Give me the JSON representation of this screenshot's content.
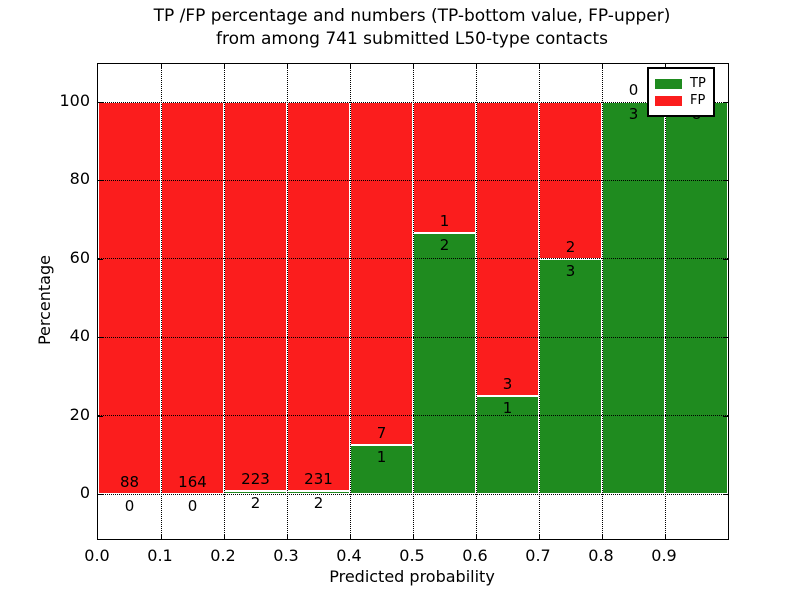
{
  "title": {
    "line1": "TP /FP percentage and numbers (TP-bottom value, FP-upper)",
    "line2": "from among 741 submitted L50-type contacts"
  },
  "chart_data": {
    "type": "bar",
    "subtype": "stacked-percentage-histogram",
    "title": "TP /FP percentage and numbers (TP-bottom value, FP-upper)\nfrom among 741 submitted L50-type contacts",
    "xlabel": "Predicted probability",
    "ylabel": "Percentage",
    "total_contacts": 741,
    "xlim": [
      0.0,
      1.0
    ],
    "ylim": [
      0,
      100
    ],
    "x_tick_labels": [
      "0.0",
      "0.1",
      "0.2",
      "0.3",
      "0.4",
      "0.5",
      "0.6",
      "0.7",
      "0.8",
      "0.9"
    ],
    "y_tick_labels": [
      "0",
      "20",
      "40",
      "60",
      "80",
      "100"
    ],
    "y_tick_values": [
      0,
      20,
      40,
      60,
      80,
      100
    ],
    "grid": "dotted-black-both-axes-drawn-over-bars",
    "legend": {
      "position": "upper-right",
      "entries": [
        {
          "label": "TP",
          "color": "#1f8b1f"
        },
        {
          "label": "FP",
          "color": "#fb1d1d"
        }
      ]
    },
    "bars": [
      {
        "bin": "0.0-0.1",
        "tp": 0,
        "fp": 88,
        "tp_pct": 0,
        "fp_pct": 100,
        "tp_label": "0",
        "fp_label": "88"
      },
      {
        "bin": "0.1-0.2",
        "tp": 0,
        "fp": 164,
        "tp_pct": 0,
        "fp_pct": 100,
        "tp_label": "0",
        "fp_label": "164"
      },
      {
        "bin": "0.2-0.3",
        "tp": 2,
        "fp": 223,
        "tp_pct": 0.89,
        "fp_pct": 99.11,
        "tp_label": "2",
        "fp_label": "223"
      },
      {
        "bin": "0.3-0.4",
        "tp": 2,
        "fp": 231,
        "tp_pct": 0.86,
        "fp_pct": 99.14,
        "tp_label": "2",
        "fp_label": "231"
      },
      {
        "bin": "0.4-0.5",
        "tp": 1,
        "fp": 7,
        "tp_pct": 12.5,
        "fp_pct": 87.5,
        "tp_label": "1",
        "fp_label": "7"
      },
      {
        "bin": "0.5-0.6",
        "tp": 2,
        "fp": 1,
        "tp_pct": 66.67,
        "fp_pct": 33.33,
        "tp_label": "2",
        "fp_label": "1"
      },
      {
        "bin": "0.6-0.7",
        "tp": 1,
        "fp": 3,
        "tp_pct": 25,
        "fp_pct": 75,
        "tp_label": "1",
        "fp_label": "3"
      },
      {
        "bin": "0.7-0.8",
        "tp": 3,
        "fp": 2,
        "tp_pct": 60,
        "fp_pct": 40,
        "tp_label": "3",
        "fp_label": "2"
      },
      {
        "bin": "0.8-0.9",
        "tp": 3,
        "fp": 0,
        "tp_pct": 100,
        "fp_pct": 0,
        "tp_label": "3",
        "fp_label": "0"
      },
      {
        "bin": "0.9-1.0",
        "tp": 8,
        "fp": 0,
        "tp_pct": 100,
        "fp_pct": 0,
        "tp_label": "8",
        "fp_label": "0"
      }
    ]
  },
  "colors": {
    "tp_green": "#1f8b1f",
    "fp_red": "#fb1d1d",
    "grid": "#000000",
    "bar_edge": "#ffffff",
    "background": "#ffffff"
  }
}
